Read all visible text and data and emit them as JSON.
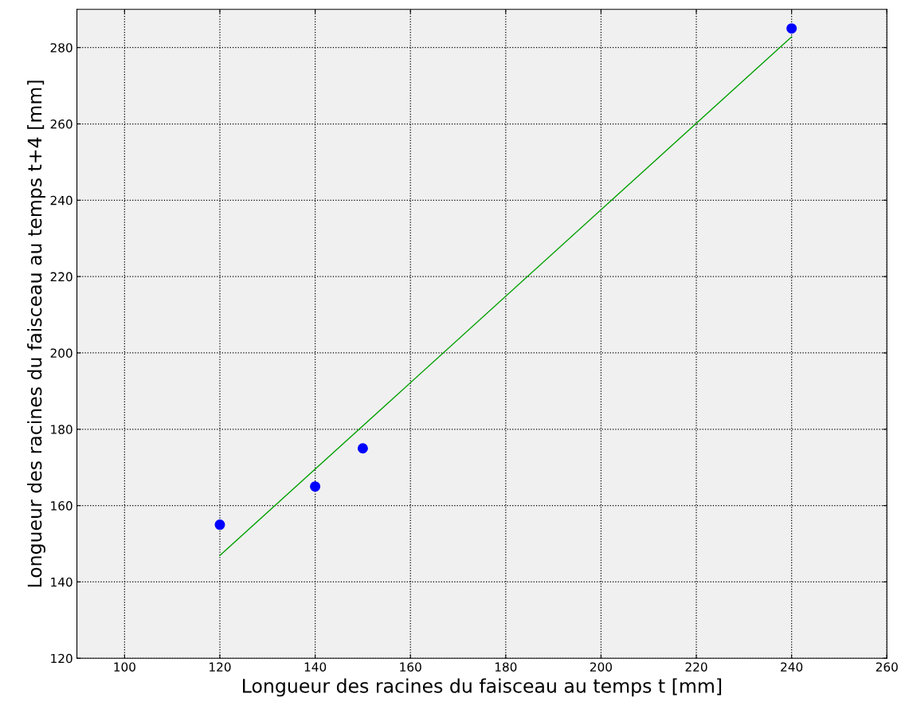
{
  "chart_data": {
    "type": "scatter",
    "xlabel": "Longueur des racines du faisceau au temps t [mm]",
    "ylabel": "Longueur des racines du faisceau au temps t+4 [mm]",
    "x": [
      120,
      140,
      150,
      240
    ],
    "series": [
      {
        "color": "#0000ff",
        "marker": "circle",
        "values": [
          155,
          165,
          175,
          285
        ]
      },
      {
        "type": "line",
        "color": "#00a000",
        "marker": "none",
        "line_style": "solid",
        "x": [
          120,
          240
        ],
        "values": [
          146.9,
          282.8
        ]
      }
    ],
    "xlim": [
      90,
      260
    ],
    "xticks": [
      100,
      120,
      140,
      160,
      180,
      200,
      220,
      240,
      260
    ],
    "ylim": [
      120,
      290
    ],
    "yticks": [
      120,
      140,
      160,
      180,
      200,
      220,
      240,
      260,
      280
    ],
    "grid": true,
    "legend": false
  }
}
